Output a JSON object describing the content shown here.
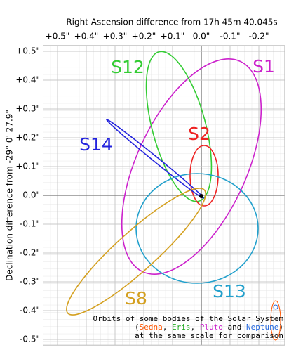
{
  "chart_data": {
    "type": "orbits",
    "x_label": "Right Ascension difference from 17h 45m 40.045s",
    "y_label": "Declination difference from -29° 0' 27.9\"",
    "xlim": [
      0.55,
      -0.29
    ],
    "ylim": [
      -0.52,
      0.52
    ],
    "xticks": [
      {
        "value": 0.5,
        "label": "+0.5\""
      },
      {
        "value": 0.4,
        "label": "+0.4\""
      },
      {
        "value": 0.3,
        "label": "+0.3\""
      },
      {
        "value": 0.2,
        "label": "+0.2\""
      },
      {
        "value": 0.1,
        "label": "+0.1\""
      },
      {
        "value": 0,
        "label": "0.0\""
      },
      {
        "value": -0.1,
        "label": "-0.1\""
      },
      {
        "value": -0.2,
        "label": "-0.2\""
      }
    ],
    "yticks": [
      {
        "value": 0.5,
        "label": "+0.5\""
      },
      {
        "value": 0.4,
        "label": "+0.4\""
      },
      {
        "value": 0.3,
        "label": "+0.3\""
      },
      {
        "value": 0.2,
        "label": "+0.2\""
      },
      {
        "value": 0.1,
        "label": "+0.1\""
      },
      {
        "value": 0,
        "label": "0.0\""
      },
      {
        "value": -0.1,
        "label": "-0.1\""
      },
      {
        "value": -0.2,
        "label": "-0.2\""
      },
      {
        "value": -0.3,
        "label": "-0.3\""
      },
      {
        "value": -0.4,
        "label": "-0.4\""
      },
      {
        "value": -0.5,
        "label": "-0.5\""
      }
    ],
    "grid": true,
    "series": [
      {
        "name": "S1",
        "color": "#cc22cc"
      },
      {
        "name": "S12",
        "color": "#33cc33"
      },
      {
        "name": "S2",
        "color": "#ee2222"
      },
      {
        "name": "S14",
        "color": "#2222dd"
      },
      {
        "name": "S13",
        "color": "#22a0cc"
      },
      {
        "name": "S8",
        "color": "#d4a020"
      }
    ],
    "note": {
      "line1": "Orbits of some bodies of the Solar System",
      "line2": [
        {
          "text": "(",
          "color": "#000000"
        },
        {
          "text": "Sedna",
          "color": "#ff5500"
        },
        {
          "text": ", ",
          "color": "#000000"
        },
        {
          "text": "Eris",
          "color": "#22aa22"
        },
        {
          "text": ", ",
          "color": "#000000"
        },
        {
          "text": "Pluto",
          "color": "#cc22cc"
        },
        {
          "text": " and ",
          "color": "#000000"
        },
        {
          "text": "Neptune",
          "color": "#2266dd"
        },
        {
          "text": ")",
          "color": "#000000"
        }
      ],
      "line3": "at the same scale for comparison"
    }
  }
}
